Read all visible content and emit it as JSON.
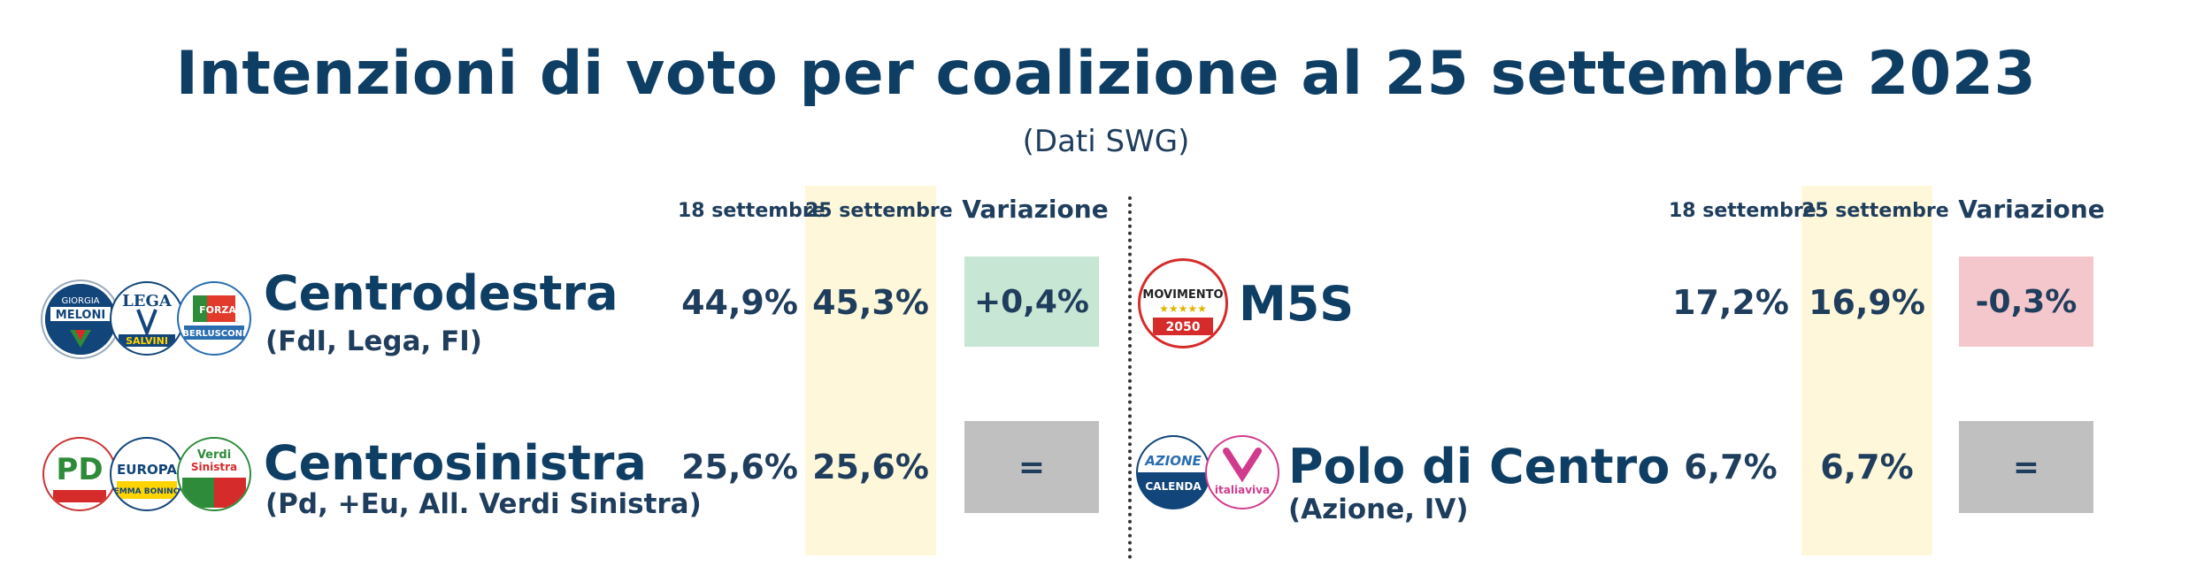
{
  "title": "Intenzioni di voto per coalizione al 25 settembre 2023",
  "subtitle": "(Dati SWG)",
  "headers": {
    "col1": "18 settembre",
    "col2": "25 settembre",
    "variation": "Variazione"
  },
  "left": [
    {
      "name": "Centrodestra",
      "sub": "(FdI, Lega, FI)",
      "v18": "44,9%",
      "v25": "45,3%",
      "change": "+0,4%",
      "change_color": "#c8e6d4",
      "logos": [
        {
          "icon": "fratelli-d-italia-logo",
          "text": [
            "GIORGIA",
            "MELONI"
          ]
        },
        {
          "icon": "lega-logo",
          "text": [
            "LEGA",
            "SALVINI"
          ]
        },
        {
          "icon": "forza-italia-logo",
          "text": [
            "FORZA",
            "BERLUSCONI"
          ]
        }
      ]
    },
    {
      "name": "Centrosinistra",
      "sub": "(Pd, +Eu, All. Verdi Sinistra)",
      "v18": "25,6%",
      "v25": "25,6%",
      "change": "=",
      "change_color": "#c0c0c0",
      "logos": [
        {
          "icon": "partito-democratico-logo",
          "text": [
            "PD"
          ]
        },
        {
          "icon": "piu-europa-logo",
          "text": [
            "EUROPA",
            "EMMA BONINO"
          ]
        },
        {
          "icon": "alleanza-verdi-sinistra-logo",
          "text": [
            "Verdi",
            "Sinistra"
          ]
        }
      ]
    }
  ],
  "right": [
    {
      "name": "M5S",
      "sub": "",
      "v18": "17,2%",
      "v25": "16,9%",
      "change": "-0,3%",
      "change_color": "#f4c7cc",
      "logos": [
        {
          "icon": "movimento-5-stelle-logo",
          "text": [
            "MOVIMENTO",
            "2050"
          ]
        }
      ]
    },
    {
      "name": "Polo di Centro",
      "sub": "(Azione, IV)",
      "v18": "6,7%",
      "v25": "6,7%",
      "change": "=",
      "change_color": "#c0c0c0",
      "logos": [
        {
          "icon": "azione-logo",
          "text": [
            "AZIONE",
            "CALENDA"
          ]
        },
        {
          "icon": "italia-viva-logo",
          "text": [
            "italiaviva"
          ]
        }
      ]
    }
  ]
}
